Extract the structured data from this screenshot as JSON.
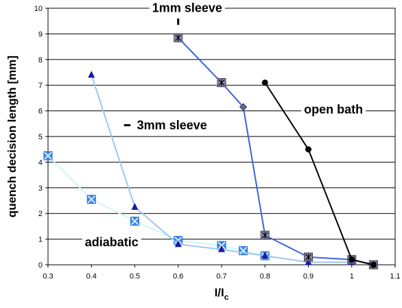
{
  "chart_data": {
    "type": "line",
    "xlabel": "I/I",
    "xlabel_sub": "c",
    "ylabel": "quench decision length [mm]",
    "xlim": [
      0.3,
      1.1
    ],
    "ylim": [
      0,
      10
    ],
    "xticks": [
      "0.3",
      "0.4",
      "0.5",
      "0.6",
      "0.7",
      "0.8",
      "0.9",
      "1",
      "1.1"
    ],
    "yticks": [
      "0",
      "1",
      "2",
      "3",
      "4",
      "5",
      "6",
      "7",
      "8",
      "9",
      "10"
    ],
    "grid": "horizontal",
    "legend": "none",
    "series": [
      {
        "name": "1mm sleeve",
        "color": "#3B63D6",
        "marker": "square-asterisk",
        "x": [
          0.6,
          0.7,
          0.75,
          0.8,
          0.9,
          1.0,
          1.05
        ],
        "y": [
          8.85,
          7.1,
          6.15,
          1.15,
          0.3,
          0.2,
          0.0
        ]
      },
      {
        "name": "open bath",
        "color": "#000000",
        "marker": "circle",
        "x": [
          0.8,
          0.9,
          1.0,
          1.05
        ],
        "y": [
          7.1,
          4.5,
          0.2,
          0.0
        ]
      },
      {
        "name": "3mm sleeve",
        "color": "#9CC7F0",
        "marker": "triangle",
        "x": [
          0.4,
          0.5,
          0.6,
          0.7,
          0.8,
          0.9,
          1.0
        ],
        "y": [
          7.4,
          2.25,
          0.8,
          0.6,
          0.35,
          0.1,
          0.1
        ]
      },
      {
        "name": "adiabatic",
        "color": "#CFF4F8",
        "marker": "square-x",
        "x": [
          0.3,
          0.4,
          0.5,
          0.6,
          0.7,
          0.75,
          0.8
        ],
        "y": [
          4.25,
          2.55,
          1.7,
          0.95,
          0.75,
          0.55,
          0.35
        ]
      }
    ],
    "annotations": [
      {
        "text": "1mm sleeve",
        "series": "1mm sleeve"
      },
      {
        "text": "open bath",
        "series": "open bath"
      },
      {
        "text": "3mm sleeve",
        "series": "3mm sleeve"
      },
      {
        "text": "adiabatic",
        "series": "adiabatic"
      }
    ]
  }
}
